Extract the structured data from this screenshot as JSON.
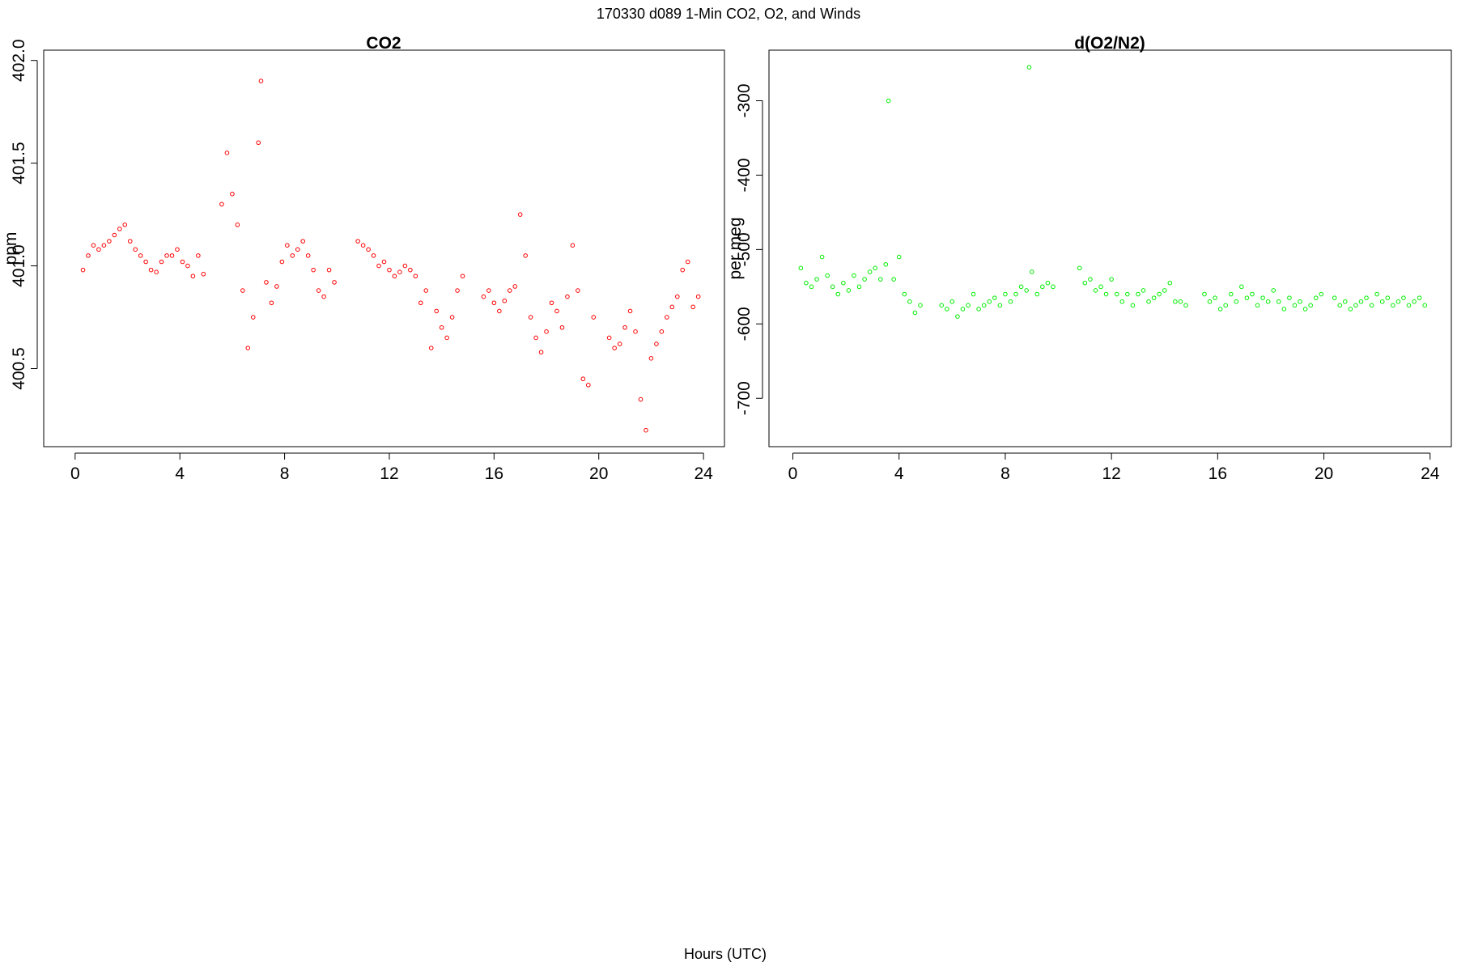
{
  "figure": {
    "title": "170330   d089   1-Min CO2, O2, and Winds",
    "xlabel": "Hours (UTC)"
  },
  "chart_data": [
    {
      "type": "scatter",
      "title": "CO2",
      "xlabel": "",
      "ylabel": "ppm",
      "xlim": [
        -1.2,
        24.8
      ],
      "ylim": [
        400.12,
        402.05
      ],
      "xticks": [
        0,
        4,
        8,
        12,
        16,
        20,
        24
      ],
      "yticks": [
        400.5,
        401.0,
        401.5,
        402.0
      ],
      "ytick_labels": [
        "400.5",
        "401.0",
        "401.5",
        "402.0"
      ],
      "grid": false,
      "color": "#ff0000",
      "marker": "open-circle",
      "series": [
        {
          "x": [
            0.3,
            0.5,
            0.7,
            0.9,
            1.1,
            1.3,
            1.5,
            1.7,
            1.9,
            2.1,
            2.3,
            2.5,
            2.7,
            2.9,
            3.1,
            3.3,
            3.5,
            3.7,
            3.9,
            4.1,
            4.3,
            4.5,
            4.7,
            4.9,
            5.6,
            5.8,
            6.0,
            6.2,
            6.4,
            6.6,
            6.8,
            7.0,
            7.1,
            7.3,
            7.5,
            7.7,
            7.9,
            8.1,
            8.3,
            8.5,
            8.7,
            8.9,
            9.1,
            9.3,
            9.5,
            9.7,
            9.9,
            10.8,
            11.0,
            11.2,
            11.4,
            11.6,
            11.8,
            12.0,
            12.2,
            12.4,
            12.6,
            12.8,
            13.0,
            13.2,
            13.4,
            13.6,
            13.8,
            14.0,
            14.2,
            14.4,
            14.6,
            14.8,
            15.6,
            15.8,
            16.0,
            16.2,
            16.4,
            16.6,
            16.8,
            17.0,
            17.2,
            17.4,
            17.6,
            17.8,
            18.0,
            18.2,
            18.4,
            18.6,
            18.8,
            19.0,
            19.2,
            19.4,
            19.6,
            19.8,
            20.4,
            20.6,
            20.8,
            21.0,
            21.2,
            21.4,
            21.6,
            21.8,
            22.0,
            22.2,
            22.4,
            22.6,
            22.8,
            23.0,
            23.2,
            23.4,
            23.6,
            23.8
          ],
          "y": [
            400.98,
            401.05,
            401.1,
            401.08,
            401.1,
            401.12,
            401.15,
            401.18,
            401.2,
            401.12,
            401.08,
            401.05,
            401.02,
            400.98,
            400.97,
            401.02,
            401.05,
            401.05,
            401.08,
            401.02,
            401.0,
            400.95,
            401.05,
            400.96,
            401.3,
            401.55,
            401.35,
            401.2,
            400.88,
            400.6,
            400.75,
            401.6,
            401.9,
            400.92,
            400.82,
            400.9,
            401.02,
            401.1,
            401.05,
            401.08,
            401.12,
            401.05,
            400.98,
            400.88,
            400.85,
            400.98,
            400.92,
            401.12,
            401.1,
            401.08,
            401.05,
            401.0,
            401.02,
            400.98,
            400.95,
            400.97,
            401.0,
            400.98,
            400.95,
            400.82,
            400.88,
            400.6,
            400.78,
            400.7,
            400.65,
            400.75,
            400.88,
            400.95,
            400.85,
            400.88,
            400.82,
            400.78,
            400.83,
            400.88,
            400.9,
            401.25,
            401.05,
            400.75,
            400.65,
            400.58,
            400.68,
            400.82,
            400.78,
            400.7,
            400.85,
            401.1,
            400.88,
            400.45,
            400.42,
            400.75,
            400.65,
            400.6,
            400.62,
            400.7,
            400.78,
            400.68,
            400.35,
            400.2,
            400.55,
            400.62,
            400.68,
            400.75,
            400.8,
            400.85,
            400.98,
            401.02,
            400.8,
            400.85
          ]
        }
      ]
    },
    {
      "type": "scatter",
      "title": "d(O2/N2)",
      "xlabel": "",
      "ylabel": "per meg",
      "xlim": [
        -0.9,
        24.8
      ],
      "ylim": [
        -765,
        -232
      ],
      "xticks": [
        0,
        4,
        8,
        12,
        16,
        20,
        24
      ],
      "yticks": [
        -700,
        -600,
        -500,
        -400,
        -300
      ],
      "ytick_labels": [
        "-700",
        "-600",
        "-500",
        "-400",
        "-300"
      ],
      "grid": false,
      "color": "#00ee00",
      "marker": "open-circle",
      "series": [
        {
          "x": [
            0.3,
            0.5,
            0.7,
            0.9,
            1.1,
            1.3,
            1.5,
            1.7,
            1.9,
            2.1,
            2.3,
            2.5,
            2.7,
            2.9,
            3.1,
            3.3,
            3.5,
            3.6,
            3.8,
            4.0,
            4.2,
            4.4,
            4.6,
            4.8,
            5.6,
            5.8,
            6.0,
            6.2,
            6.4,
            6.6,
            6.8,
            7.0,
            7.2,
            7.4,
            7.6,
            7.8,
            8.0,
            8.2,
            8.4,
            8.6,
            8.8,
            8.9,
            9.0,
            9.2,
            9.4,
            9.6,
            9.8,
            10.8,
            11.0,
            11.2,
            11.4,
            11.6,
            11.8,
            12.0,
            12.2,
            12.4,
            12.6,
            12.8,
            13.0,
            13.2,
            13.4,
            13.6,
            13.8,
            14.0,
            14.2,
            14.4,
            14.6,
            14.8,
            15.5,
            15.7,
            15.9,
            16.1,
            16.3,
            16.5,
            16.7,
            16.9,
            17.1,
            17.3,
            17.5,
            17.7,
            17.9,
            18.1,
            18.3,
            18.5,
            18.7,
            18.9,
            19.1,
            19.3,
            19.5,
            19.7,
            19.9,
            20.4,
            20.6,
            20.8,
            21.0,
            21.2,
            21.4,
            21.6,
            21.8,
            22.0,
            22.2,
            22.4,
            22.6,
            22.8,
            23.0,
            23.2,
            23.4,
            23.6,
            23.8
          ],
          "y": [
            -525,
            -545,
            -550,
            -540,
            -510,
            -535,
            -550,
            -560,
            -545,
            -555,
            -535,
            -550,
            -540,
            -530,
            -525,
            -540,
            -520,
            -300,
            -540,
            -510,
            -560,
            -570,
            -585,
            -575,
            -575,
            -580,
            -570,
            -590,
            -580,
            -575,
            -560,
            -580,
            -575,
            -570,
            -565,
            -575,
            -560,
            -570,
            -560,
            -550,
            -555,
            -255,
            -530,
            -560,
            -550,
            -545,
            -550,
            -525,
            -545,
            -540,
            -555,
            -550,
            -560,
            -540,
            -560,
            -570,
            -560,
            -575,
            -560,
            -555,
            -570,
            -565,
            -560,
            -555,
            -545,
            -570,
            -570,
            -575,
            -560,
            -570,
            -565,
            -580,
            -575,
            -560,
            -570,
            -550,
            -565,
            -560,
            -575,
            -565,
            -570,
            -555,
            -570,
            -580,
            -565,
            -575,
            -570,
            -580,
            -575,
            -565,
            -560,
            -565,
            -575,
            -570,
            -580,
            -575,
            -570,
            -565,
            -575,
            -560,
            -570,
            -565,
            -575,
            -570,
            -565,
            -575,
            -570,
            -565,
            -575
          ]
        }
      ]
    }
  ]
}
